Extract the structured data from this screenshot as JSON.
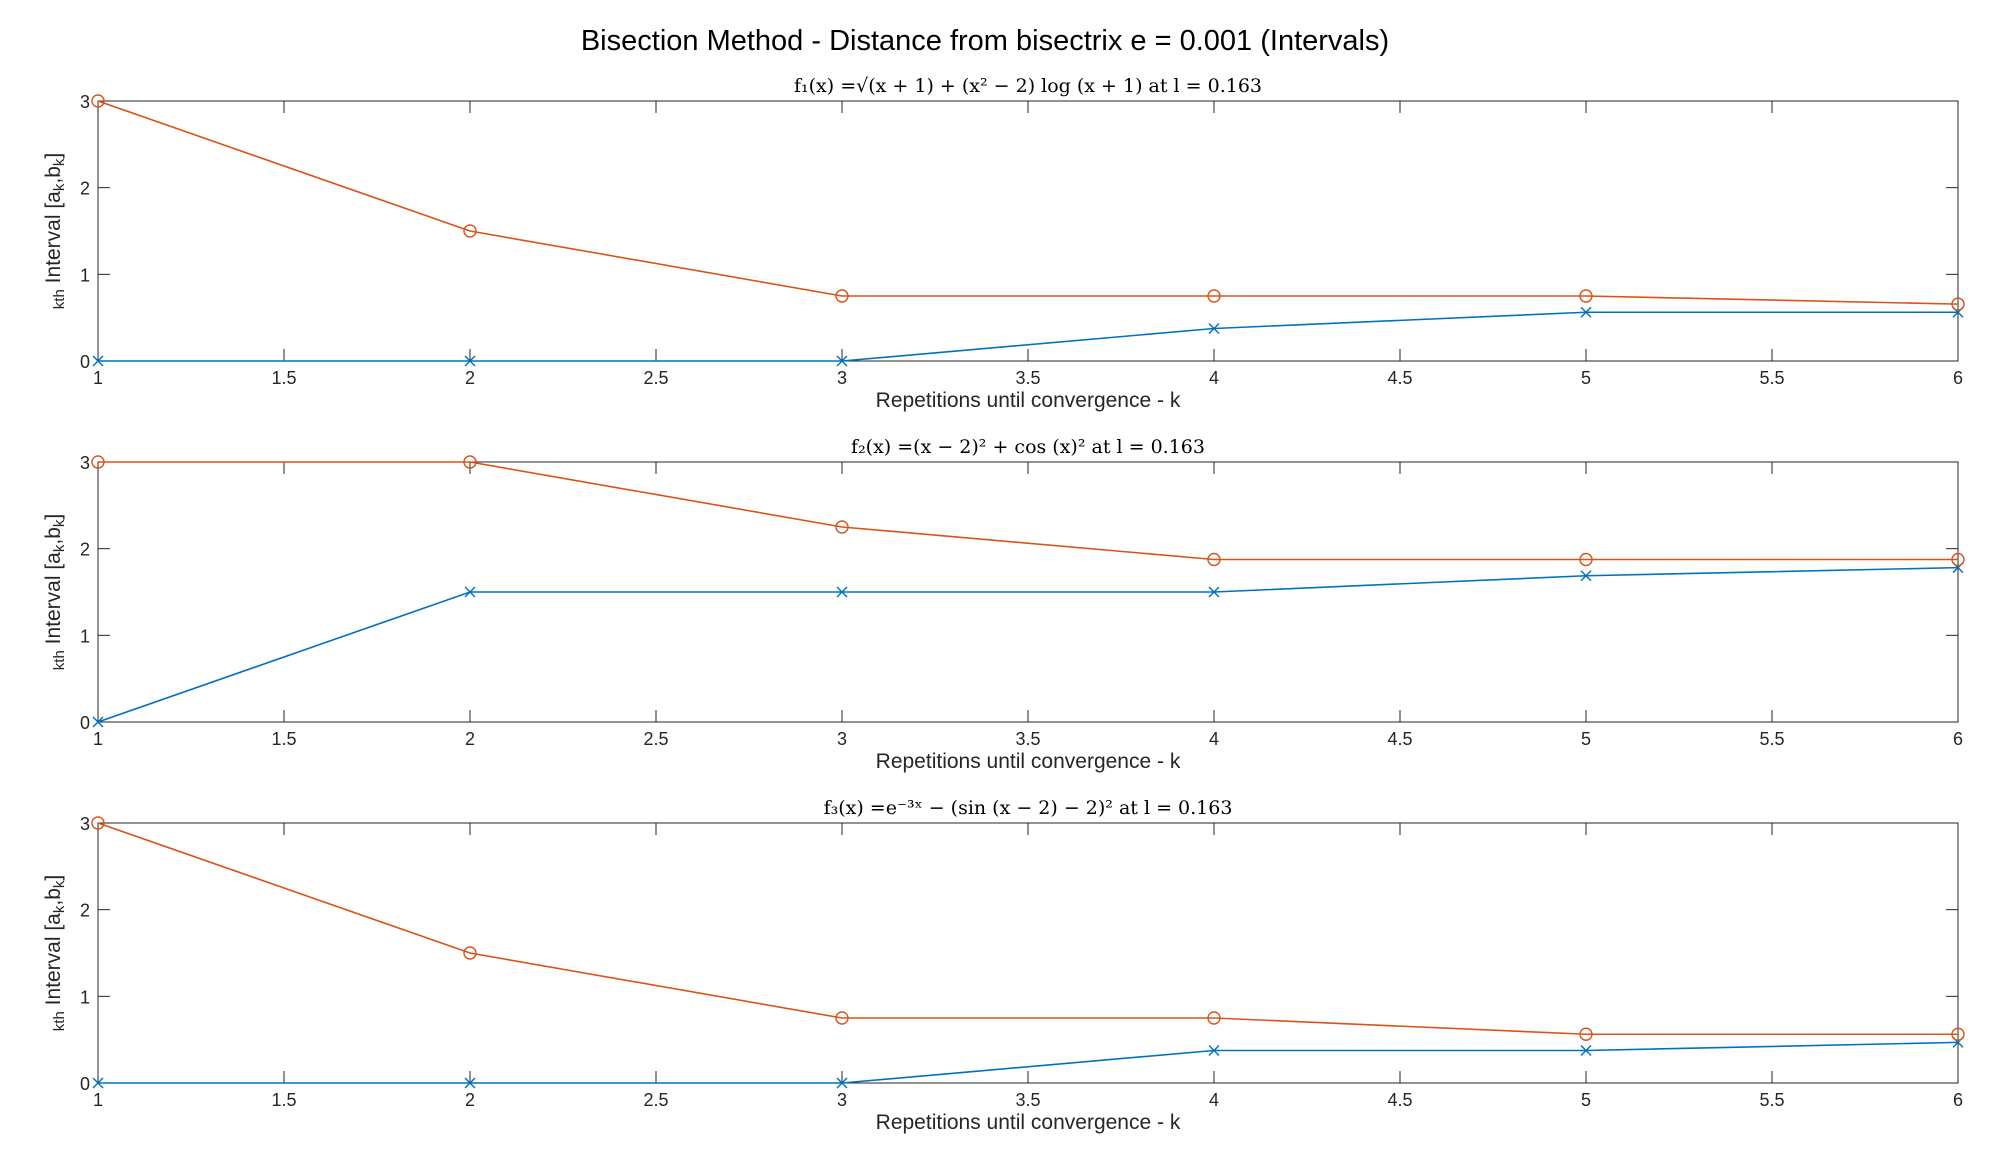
{
  "figure": {
    "title": "Bisection Method - Distance from bisectrix e = 0.001 (Intervals)"
  },
  "colors": {
    "a_series": "#0072BD",
    "b_series": "#D95319",
    "axes": "#262626"
  },
  "chart_data": [
    {
      "type": "line",
      "title": "f₁(x) =√(x + 1) + (x² − 2) log (x + 1) at l = 0.163",
      "xlabel": "Repetitions until convergence - k",
      "ylabel": "k_th Interval [a_k,b_k]",
      "xlim": [
        1,
        6
      ],
      "ylim": [
        0,
        3
      ],
      "xticks": [
        1,
        1.5,
        2,
        2.5,
        3,
        3.5,
        4,
        4.5,
        5,
        5.5,
        6
      ],
      "yticks": [
        0,
        1,
        2,
        3
      ],
      "grid": false,
      "x": [
        1,
        2,
        3,
        4,
        5,
        6
      ],
      "series": [
        {
          "key": "a",
          "marker": "x",
          "values": [
            0,
            0,
            0,
            0.375,
            0.5625,
            0.5625
          ]
        },
        {
          "key": "b",
          "marker": "o",
          "values": [
            3,
            1.5,
            0.75,
            0.75,
            0.75,
            0.65625
          ]
        }
      ]
    },
    {
      "type": "line",
      "title": "f₂(x) =(x − 2)² + cos (x)² at l = 0.163",
      "xlabel": "Repetitions until convergence - k",
      "ylabel": "k_th Interval [a_k,b_k]",
      "xlim": [
        1,
        6
      ],
      "ylim": [
        0,
        3
      ],
      "xticks": [
        1,
        1.5,
        2,
        2.5,
        3,
        3.5,
        4,
        4.5,
        5,
        5.5,
        6
      ],
      "yticks": [
        0,
        1,
        2,
        3
      ],
      "grid": false,
      "x": [
        1,
        2,
        3,
        4,
        5,
        6
      ],
      "series": [
        {
          "key": "a",
          "marker": "x",
          "values": [
            0,
            1.5,
            1.5,
            1.5,
            1.6875,
            1.78125
          ]
        },
        {
          "key": "b",
          "marker": "o",
          "values": [
            3,
            3,
            2.25,
            1.875,
            1.875,
            1.875
          ]
        }
      ]
    },
    {
      "type": "line",
      "title": "f₃(x) =e⁻³ˣ − (sin (x − 2) − 2)² at l = 0.163",
      "xlabel": "Repetitions until convergence - k",
      "ylabel": "k_th Interval [a_k,b_k]",
      "xlim": [
        1,
        6
      ],
      "ylim": [
        0,
        3
      ],
      "xticks": [
        1,
        1.5,
        2,
        2.5,
        3,
        3.5,
        4,
        4.5,
        5,
        5.5,
        6
      ],
      "yticks": [
        0,
        1,
        2,
        3
      ],
      "grid": false,
      "x": [
        1,
        2,
        3,
        4,
        5,
        6
      ],
      "series": [
        {
          "key": "a",
          "marker": "x",
          "values": [
            0,
            0,
            0,
            0.375,
            0.375,
            0.46875
          ]
        },
        {
          "key": "b",
          "marker": "o",
          "values": [
            3,
            1.5,
            0.75,
            0.75,
            0.5625,
            0.5625
          ]
        }
      ]
    }
  ]
}
